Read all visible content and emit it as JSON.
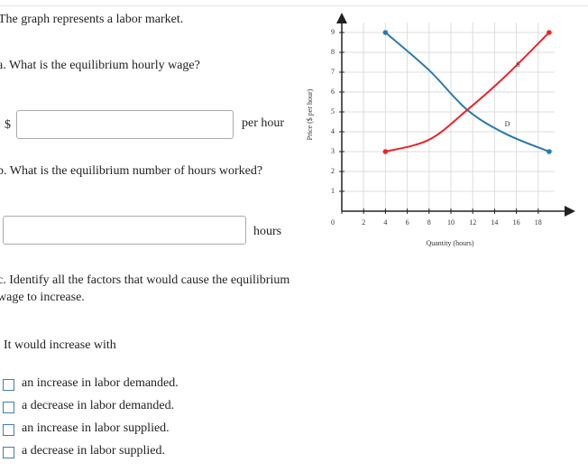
{
  "intro": "The graph represents a labor market.",
  "questions": [
    {
      "label": "a. What is the equilibrium hourly wage?",
      "prefix": "$",
      "suffix": "per hour"
    },
    {
      "label": "b. What is the equilibrium number of hours worked?",
      "suffix": "hours"
    },
    {
      "label": "c. Identify all the factors that would cause the equilibrium wage to increase.",
      "prompt": "It would increase with",
      "options": [
        "an increase in labor demanded.",
        "a decrease in labor demanded.",
        "an increase in labor supplied.",
        "a decrease in labor supplied."
      ]
    }
  ],
  "chart_data": {
    "type": "line",
    "xlabel": "Quantity (hours)",
    "ylabel": "Price ($ per hour)",
    "xlim": [
      0,
      20
    ],
    "ylim": [
      0,
      10
    ],
    "xticks": [
      0,
      2,
      4,
      6,
      8,
      10,
      12,
      14,
      16,
      18
    ],
    "yticks": [
      1,
      2,
      3,
      4,
      5,
      6,
      7,
      8,
      9
    ],
    "grid": true,
    "series": [
      {
        "name": "D",
        "color": "#2a7ab0",
        "x": [
          4,
          8,
          11.5,
          15,
          19
        ],
        "values": [
          9,
          7.1,
          5.1,
          3.9,
          3
        ]
      },
      {
        "name": "S",
        "color": "#e8262a",
        "x": [
          4,
          8,
          11.5,
          15,
          19
        ],
        "values": [
          3,
          3.6,
          5.1,
          6.8,
          9
        ]
      }
    ]
  }
}
